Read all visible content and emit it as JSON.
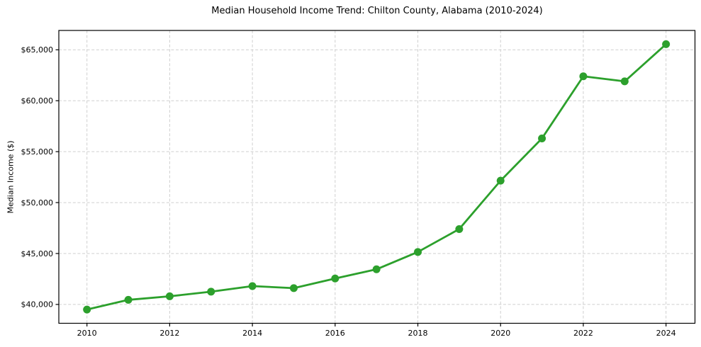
{
  "chart_data": {
    "type": "line",
    "title": "Median Household Income Trend: Chilton County, Alabama (2010-2024)",
    "xlabel": "",
    "ylabel": "Median Income ($)",
    "series_name": "Median Household Income",
    "x": [
      2010,
      2011,
      2012,
      2013,
      2014,
      2015,
      2016,
      2017,
      2018,
      2019,
      2020,
      2021,
      2022,
      2023,
      2024
    ],
    "values": [
      39500,
      40450,
      40800,
      41250,
      41800,
      41600,
      42550,
      43450,
      45150,
      47400,
      52150,
      56300,
      62400,
      61900,
      65550
    ],
    "xlim": [
      2009.32,
      2024.7
    ],
    "ylim": [
      38150,
      66900
    ],
    "xticks": [
      2010,
      2012,
      2014,
      2016,
      2018,
      2020,
      2022,
      2024
    ],
    "yticks": [
      40000,
      45000,
      50000,
      55000,
      60000,
      65000
    ],
    "ytick_labels": [
      "$40,000",
      "$45,000",
      "$50,000",
      "$55,000",
      "$60,000",
      "$65,000"
    ],
    "grid": true,
    "grid_style": "dashed",
    "legend": "none",
    "marker": "circle"
  },
  "colors": {
    "line": "#2ca02c",
    "grid": "#cfcfcf",
    "spine": "#000000",
    "text": "#000000",
    "background": "#ffffff"
  }
}
